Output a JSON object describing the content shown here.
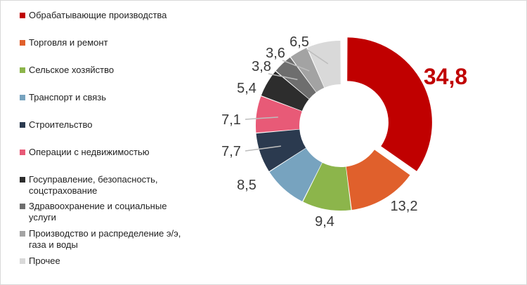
{
  "chart_data": {
    "type": "pie",
    "title": "",
    "donut": true,
    "legend_position": "left",
    "series": [
      {
        "name": "Обрабатывающие производства",
        "value": 34.8,
        "label": "34,8",
        "color": "#c00000",
        "exploded": true
      },
      {
        "name": "Торговля и ремонт",
        "value": 13.2,
        "label": "13,2",
        "color": "#e0602c"
      },
      {
        "name": "Сельское хозяйство",
        "value": 9.4,
        "label": "9,4",
        "color": "#8cb54b"
      },
      {
        "name": "Транспорт и связь",
        "value": 8.5,
        "label": "8,5",
        "color": "#77a3bf"
      },
      {
        "name": "Строительство",
        "value": 7.7,
        "label": "7,7",
        "color": "#2b3a4f"
      },
      {
        "name": "Операции с недвижимостью",
        "value": 7.1,
        "label": "7,1",
        "color": "#e85a77"
      },
      {
        "name": "Госуправление,   безопасность, соцстрахование",
        "value": 5.4,
        "label": "5,4",
        "color": "#2d2d2d"
      },
      {
        "name": "Здравоохранение и социальные услуги",
        "value": 3.8,
        "label": "3,8",
        "color": "#6e6e6e"
      },
      {
        "name": "Производство и распределение э/э, газа и воды",
        "value": 3.6,
        "label": "3,6",
        "color": "#a3a3a3"
      },
      {
        "name": "Прочее",
        "value": 6.5,
        "label": "6,5",
        "color": "#d9d9d9"
      }
    ]
  }
}
